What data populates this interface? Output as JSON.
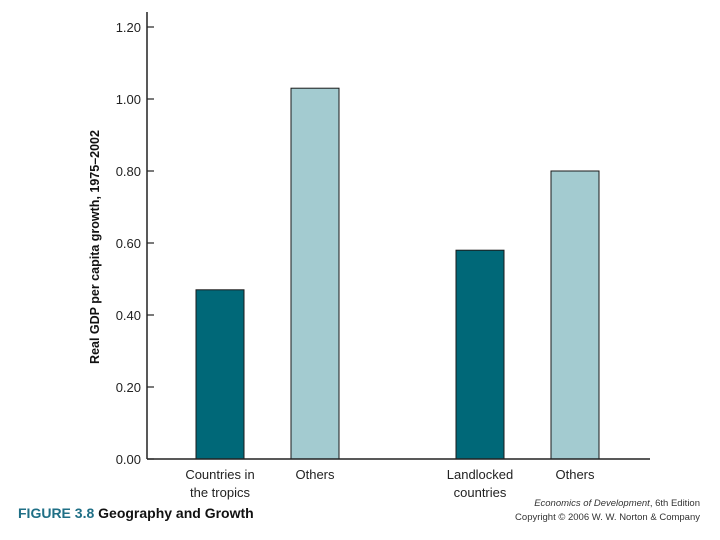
{
  "chart_data": {
    "type": "bar",
    "title": "",
    "ylabel": "Real GDP per capita growth, 1975–2002",
    "xlabel": "",
    "ylim": [
      0,
      1.2
    ],
    "yticks": [
      "0.00",
      "0.20",
      "0.40",
      "0.60",
      "0.80",
      "1.00",
      "1.20"
    ],
    "groups": [
      {
        "bars": [
          {
            "label_lines": [
              "Countries in",
              "the tropics"
            ],
            "value": 0.47,
            "color": "#006878"
          },
          {
            "label_lines": [
              "Others"
            ],
            "value": 1.03,
            "color": "#a3cbd0"
          }
        ]
      },
      {
        "bars": [
          {
            "label_lines": [
              "Landlocked",
              "countries"
            ],
            "value": 0.58,
            "color": "#006878"
          },
          {
            "label_lines": [
              "Others"
            ],
            "value": 0.8,
            "color": "#a3cbd0"
          }
        ]
      }
    ]
  },
  "caption": {
    "figure_number": "FIGURE 3.8",
    "figure_title": "Geography and Growth"
  },
  "credit": {
    "book": "Economics of Development",
    "edition": ", 6th Edition",
    "copyright": "Copyright © 2006 W. W. Norton & Company"
  }
}
